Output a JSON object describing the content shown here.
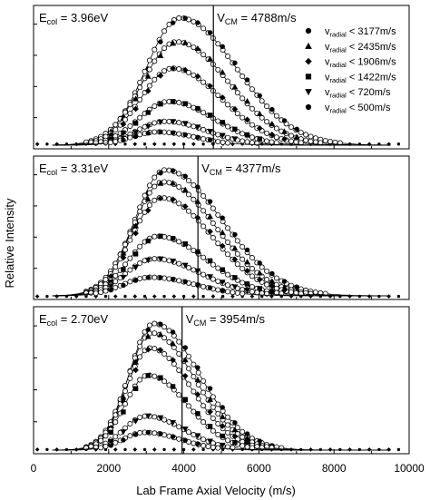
{
  "chart_data": [
    {
      "type": "line",
      "ecol_label": "E",
      "ecol_sub": "col",
      "ecol_value": " = 3.96eV",
      "vcm_label": "V",
      "vcm_sub": "CM",
      "vcm_value": " = 4788m/s",
      "vcm_x": 4788,
      "xlim": [
        0,
        10000
      ],
      "ylim": [
        0,
        1.0
      ],
      "legend_position": "top-right",
      "legend": [
        {
          "marker": "circle",
          "filled": true,
          "label_v": "v",
          "label_sub": "radial",
          "label_rest": " < 3177m/s"
        },
        {
          "marker": "triangle-up",
          "filled": true,
          "label_v": "v",
          "label_sub": "radial",
          "label_rest": " < 2435m/s"
        },
        {
          "marker": "diamond",
          "filled": true,
          "label_v": "v",
          "label_sub": "radial",
          "label_rest": " < 1906m/s"
        },
        {
          "marker": "square",
          "filled": true,
          "label_v": "v",
          "label_sub": "radial",
          "label_rest": " < 1422m/s"
        },
        {
          "marker": "triangle-down",
          "filled": true,
          "label_v": "v",
          "label_sub": "radial",
          "label_rest": " < 720m/s"
        },
        {
          "marker": "circle",
          "filled": true,
          "label_v": "v",
          "label_sub": "radial",
          "label_rest": " < 500m/s"
        }
      ],
      "series": [
        {
          "marker": "circle",
          "center": 3900,
          "width_left": 900,
          "width_right": 1500,
          "peak": 0.96
        },
        {
          "marker": "triangle-up",
          "center": 3800,
          "width_left": 900,
          "width_right": 1400,
          "peak": 0.78
        },
        {
          "marker": "diamond",
          "center": 3700,
          "width_left": 850,
          "width_right": 1300,
          "peak": 0.58
        },
        {
          "marker": "square",
          "center": 3600,
          "width_left": 800,
          "width_right": 1200,
          "peak": 0.33
        },
        {
          "marker": "triangle-down",
          "center": 3500,
          "width_left": 750,
          "width_right": 1100,
          "peak": 0.18
        },
        {
          "marker": "circle",
          "center": 3300,
          "width_left": 700,
          "width_right": 1000,
          "peak": 0.1
        }
      ]
    },
    {
      "type": "line",
      "ecol_label": "E",
      "ecol_sub": "col",
      "ecol_value": " = 3.31eV",
      "vcm_label": "V",
      "vcm_sub": "CM",
      "vcm_value": " = 4377m/s",
      "vcm_x": 4377,
      "xlim": [
        0,
        10000
      ],
      "ylim": [
        0,
        1.0
      ],
      "series": [
        {
          "marker": "circle",
          "center": 3500,
          "width_left": 800,
          "width_right": 1500,
          "peak": 0.95
        },
        {
          "marker": "triangle-up",
          "center": 3450,
          "width_left": 800,
          "width_right": 1400,
          "peak": 0.86
        },
        {
          "marker": "diamond",
          "center": 3400,
          "width_left": 780,
          "width_right": 1350,
          "peak": 0.74
        },
        {
          "marker": "square",
          "center": 3300,
          "width_left": 760,
          "width_right": 1300,
          "peak": 0.45
        },
        {
          "marker": "triangle-down",
          "center": 3200,
          "width_left": 740,
          "width_right": 1250,
          "peak": 0.28
        },
        {
          "marker": "circle",
          "center": 3100,
          "width_left": 720,
          "width_right": 1200,
          "peak": 0.14
        }
      ]
    },
    {
      "type": "line",
      "ecol_label": "E",
      "ecol_sub": "col",
      "ecol_value": " = 2.70eV",
      "vcm_label": "V",
      "vcm_sub": "CM",
      "vcm_value": " = 3954m/s",
      "vcm_x": 3954,
      "xlim": [
        0,
        10000
      ],
      "ylim": [
        0,
        1.0
      ],
      "xlabel": "Lab Frame Axial Velocity (m/s)",
      "xticks": [
        0,
        2000,
        4000,
        6000,
        8000,
        10000
      ],
      "series": [
        {
          "marker": "circle",
          "center": 3200,
          "width_left": 650,
          "width_right": 1200,
          "peak": 0.93
        },
        {
          "marker": "triangle-up",
          "center": 3150,
          "width_left": 650,
          "width_right": 1150,
          "peak": 0.86
        },
        {
          "marker": "diamond",
          "center": 3100,
          "width_left": 630,
          "width_right": 1100,
          "peak": 0.75
        },
        {
          "marker": "square",
          "center": 3050,
          "width_left": 620,
          "width_right": 1050,
          "peak": 0.55
        },
        {
          "marker": "triangle-down",
          "center": 3000,
          "width_left": 600,
          "width_right": 1000,
          "peak": 0.25
        },
        {
          "marker": "circle",
          "center": 2950,
          "width_left": 580,
          "width_right": 950,
          "peak": 0.13
        }
      ]
    }
  ],
  "ylabel": "Relative Intensity"
}
